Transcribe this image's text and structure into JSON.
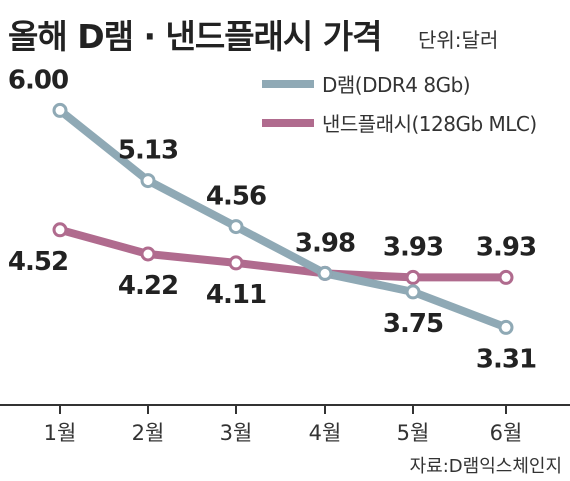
{
  "header": {
    "title": "올해 D램 · 낸드플래시 가격",
    "unit": "단위:달러"
  },
  "source": "자료:D램익스체인지",
  "colors": {
    "dram": "#8fa9b5",
    "nand": "#b06b8e",
    "axis": "#333333",
    "text": "#222222"
  },
  "chart_data": {
    "type": "line",
    "title": "올해 D램 · 낸드플래시 가격",
    "unit": "단위:달러",
    "categories": [
      "1월",
      "2월",
      "3월",
      "4월",
      "5월",
      "6월"
    ],
    "ylim": [
      2.2,
      6.6
    ],
    "grid": false,
    "legend_position": "top-right",
    "series": [
      {
        "name": "D램(DDR4 8Gb)",
        "values": [
          6.0,
          5.13,
          4.56,
          3.98,
          3.75,
          3.31
        ],
        "labels": [
          "6.00",
          "5.13",
          "4.56",
          "",
          "3.75",
          "3.31"
        ],
        "label_side": [
          "above",
          "above",
          "above",
          "",
          "below",
          "below"
        ],
        "color": "#8fa9b5"
      },
      {
        "name": "낸드플래시(128Gb MLC)",
        "values": [
          4.52,
          4.22,
          4.11,
          3.98,
          3.93,
          3.93
        ],
        "labels": [
          "4.52",
          "4.22",
          "4.11",
          "3.98",
          "3.93",
          "3.93"
        ],
        "label_side": [
          "below",
          "below",
          "below",
          "above",
          "above",
          "above"
        ],
        "color": "#b06b8e"
      }
    ]
  }
}
